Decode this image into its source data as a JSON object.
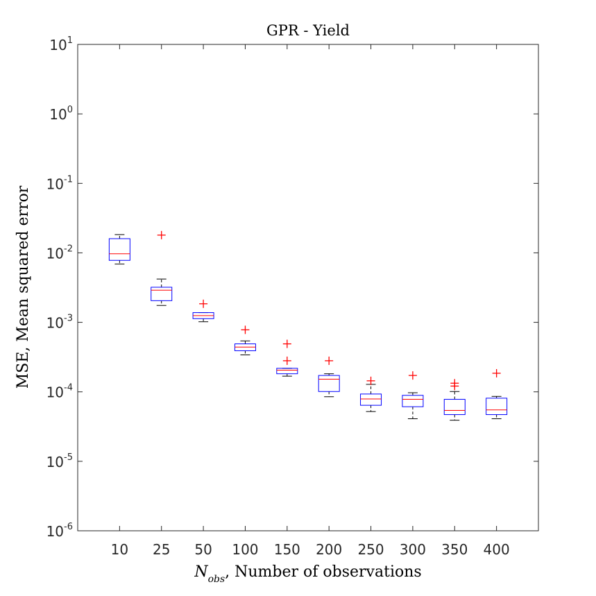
{
  "chart_data": {
    "type": "box",
    "title": "GPR - Yield",
    "xlabel": {
      "symbol": "N",
      "subscript": "obs",
      "text": ", Number of observations"
    },
    "ylabel": "MSE, Mean squared error",
    "yscale": "log",
    "ylim": [
      1e-06,
      10
    ],
    "ytick_base": "10",
    "ytick_exponents": [
      "1",
      "0",
      "-1",
      "-2",
      "-3",
      "-4",
      "-5",
      "-6"
    ],
    "categories": [
      "10",
      "25",
      "50",
      "100",
      "150",
      "200",
      "250",
      "300",
      "350",
      "400"
    ],
    "boxes": [
      {
        "category": "10",
        "whisker_low": 0.0069,
        "q1": 0.0078,
        "median": 0.0097,
        "q3": 0.016,
        "whisker_high": 0.0183,
        "outliers": []
      },
      {
        "category": "25",
        "whisker_low": 0.00175,
        "q1": 0.00205,
        "median": 0.0029,
        "q3": 0.0032,
        "whisker_high": 0.0042,
        "outliers": [
          0.018
        ]
      },
      {
        "category": "50",
        "whisker_low": 0.00102,
        "q1": 0.00113,
        "median": 0.00125,
        "q3": 0.00138,
        "whisker_high": 0.00138,
        "outliers": [
          0.00185
        ]
      },
      {
        "category": "100",
        "whisker_low": 0.00034,
        "q1": 0.00039,
        "median": 0.00044,
        "q3": 0.00049,
        "whisker_high": 0.00054,
        "outliers": [
          0.00078
        ]
      },
      {
        "category": "150",
        "whisker_low": 0.000168,
        "q1": 0.000182,
        "median": 0.000205,
        "q3": 0.000218,
        "whisker_high": 0.000218,
        "outliers": [
          0.00049,
          0.00028
        ]
      },
      {
        "category": "200",
        "whisker_low": 8.5e-05,
        "q1": 0.000101,
        "median": 0.000152,
        "q3": 0.000172,
        "whisker_high": 0.000182,
        "outliers": [
          0.00028
        ]
      },
      {
        "category": "250",
        "whisker_low": 5.2e-05,
        "q1": 6.4e-05,
        "median": 7.9e-05,
        "q3": 9.3e-05,
        "whisker_high": 0.000128,
        "outliers": [
          0.000144
        ]
      },
      {
        "category": "300",
        "whisker_low": 4.1e-05,
        "q1": 6.1e-05,
        "median": 7.8e-05,
        "q3": 8.9e-05,
        "whisker_high": 9.7e-05,
        "outliers": [
          0.000172
        ]
      },
      {
        "category": "350",
        "whisker_low": 3.9e-05,
        "q1": 4.7e-05,
        "median": 5.4e-05,
        "q3": 7.8e-05,
        "whisker_high": 0.000101,
        "outliers": [
          0.000133,
          0.000121
        ]
      },
      {
        "category": "400",
        "whisker_low": 4.1e-05,
        "q1": 4.7e-05,
        "median": 5.5e-05,
        "q3": 8.1e-05,
        "whisker_high": 8.6e-05,
        "outliers": [
          0.000185
        ]
      }
    ],
    "colors": {
      "box": "#0000ff",
      "median": "#ff0000",
      "whisker": "#000000",
      "outlier": "#ff0000",
      "axis": "#262626"
    },
    "grid": false,
    "legend": "none"
  }
}
